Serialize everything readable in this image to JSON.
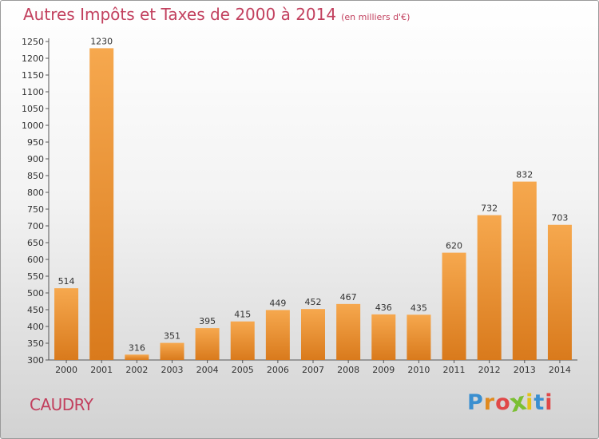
{
  "header": {
    "title": "Autres Impôts et Taxes de 2000 à 2014",
    "subtitle": "(en milliers d'€)"
  },
  "footer": {
    "city": "CAUDRY",
    "logo_text": "Proxiti",
    "logo_colors": [
      "#3a8fd0",
      "#e08a1e",
      "#e04848",
      "#7bbf32",
      "#e3c21a",
      "#3a8fd0",
      "#e04848"
    ]
  },
  "colors": {
    "bar_light": "#f6a84e",
    "bar_dark": "#d97a1c",
    "title": "#c2405e",
    "axis_text": "#333333"
  },
  "chart_data": {
    "type": "bar",
    "title": "Autres Impôts et Taxes de 2000 à 2014",
    "subtitle": "(en milliers d'€)",
    "categories": [
      "2000",
      "2001",
      "2002",
      "2003",
      "2004",
      "2005",
      "2006",
      "2007",
      "2008",
      "2009",
      "2010",
      "2011",
      "2012",
      "2013",
      "2014"
    ],
    "values": [
      514,
      1230,
      316,
      351,
      395,
      415,
      449,
      452,
      467,
      436,
      435,
      620,
      732,
      832,
      703
    ],
    "ylim": [
      300,
      1250
    ],
    "ytick_step": 50,
    "grid": false,
    "data_labels": true
  }
}
